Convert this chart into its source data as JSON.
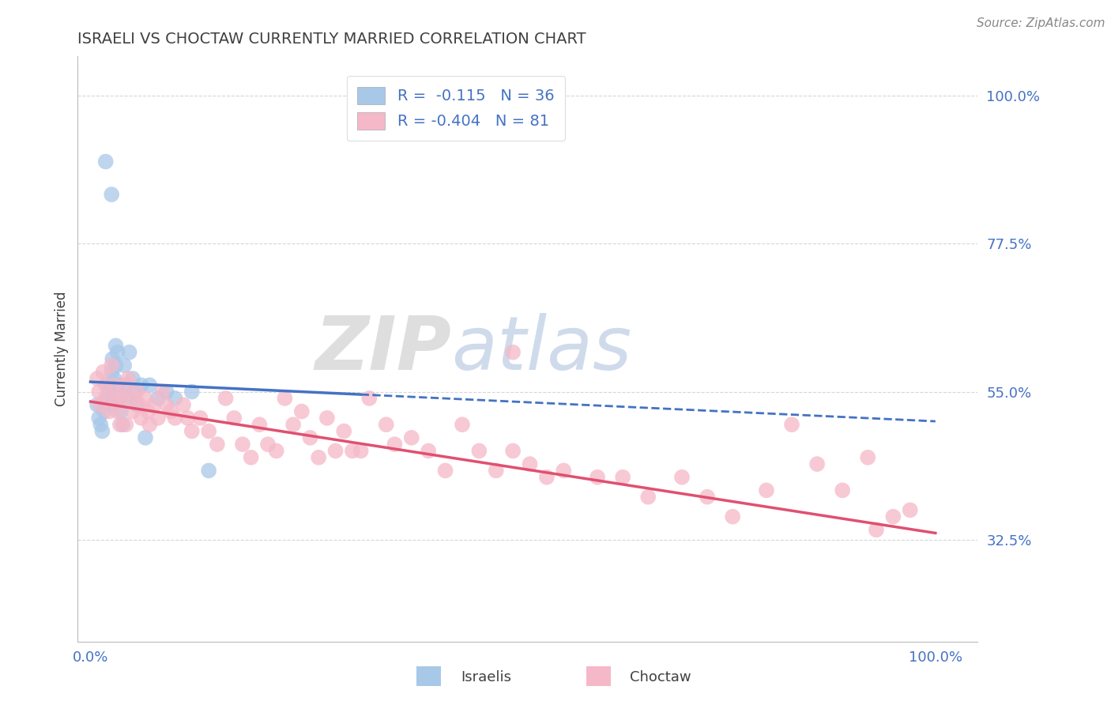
{
  "title": "ISRAELI VS CHOCTAW CURRENTLY MARRIED CORRELATION CHART",
  "source_text": "Source: ZipAtlas.com",
  "ylabel": "Currently Married",
  "watermark": "ZIPatlas",
  "yticks": [
    0.325,
    0.55,
    0.775,
    1.0
  ],
  "ytick_labels": [
    "32.5%",
    "55.0%",
    "77.5%",
    "100.0%"
  ],
  "ymin": 0.17,
  "ymax": 1.06,
  "xmin": -0.015,
  "xmax": 1.05,
  "israeli_color": "#a8c8e8",
  "choctaw_color": "#f5b8c8",
  "israeli_R": -0.115,
  "israeli_N": 36,
  "choctaw_R": -0.404,
  "choctaw_N": 81,
  "trend_israeli_color": "#4472c4",
  "trend_choctaw_color": "#e05070",
  "background_color": "#ffffff",
  "grid_color": "#cccccc",
  "title_color": "#404040",
  "axis_label_color": "#404040",
  "tick_color": "#4472c4",
  "legend_R_color": "#4472c4",
  "israeli_x": [
    0.008,
    0.01,
    0.012,
    0.014,
    0.016,
    0.018,
    0.02,
    0.022,
    0.024,
    0.025,
    0.026,
    0.028,
    0.03,
    0.03,
    0.032,
    0.033,
    0.034,
    0.036,
    0.038,
    0.04,
    0.042,
    0.044,
    0.046,
    0.05,
    0.052,
    0.055,
    0.06,
    0.065,
    0.07,
    0.08,
    0.09,
    0.1,
    0.12,
    0.14,
    0.025,
    0.018
  ],
  "israeli_y": [
    0.53,
    0.51,
    0.5,
    0.49,
    0.52,
    0.54,
    0.56,
    0.55,
    0.53,
    0.58,
    0.6,
    0.57,
    0.62,
    0.59,
    0.61,
    0.56,
    0.54,
    0.52,
    0.5,
    0.59,
    0.56,
    0.54,
    0.61,
    0.57,
    0.55,
    0.53,
    0.56,
    0.48,
    0.56,
    0.54,
    0.55,
    0.54,
    0.55,
    0.43,
    0.85,
    0.9
  ],
  "choctaw_x": [
    0.008,
    0.01,
    0.012,
    0.015,
    0.018,
    0.02,
    0.022,
    0.025,
    0.028,
    0.03,
    0.032,
    0.035,
    0.038,
    0.04,
    0.042,
    0.045,
    0.048,
    0.05,
    0.055,
    0.058,
    0.06,
    0.065,
    0.068,
    0.07,
    0.075,
    0.08,
    0.085,
    0.09,
    0.095,
    0.1,
    0.11,
    0.115,
    0.12,
    0.13,
    0.14,
    0.15,
    0.16,
    0.17,
    0.18,
    0.19,
    0.2,
    0.21,
    0.22,
    0.23,
    0.24,
    0.25,
    0.26,
    0.27,
    0.28,
    0.29,
    0.3,
    0.31,
    0.32,
    0.33,
    0.35,
    0.36,
    0.38,
    0.4,
    0.42,
    0.44,
    0.46,
    0.48,
    0.5,
    0.52,
    0.54,
    0.56,
    0.6,
    0.63,
    0.66,
    0.7,
    0.73,
    0.76,
    0.8,
    0.83,
    0.86,
    0.89,
    0.92,
    0.95,
    0.97,
    0.5,
    0.93
  ],
  "choctaw_y": [
    0.57,
    0.55,
    0.53,
    0.58,
    0.56,
    0.54,
    0.52,
    0.59,
    0.56,
    0.54,
    0.52,
    0.5,
    0.54,
    0.56,
    0.5,
    0.57,
    0.54,
    0.52,
    0.55,
    0.53,
    0.51,
    0.54,
    0.52,
    0.5,
    0.53,
    0.51,
    0.55,
    0.53,
    0.52,
    0.51,
    0.53,
    0.51,
    0.49,
    0.51,
    0.49,
    0.47,
    0.54,
    0.51,
    0.47,
    0.45,
    0.5,
    0.47,
    0.46,
    0.54,
    0.5,
    0.52,
    0.48,
    0.45,
    0.51,
    0.46,
    0.49,
    0.46,
    0.46,
    0.54,
    0.5,
    0.47,
    0.48,
    0.46,
    0.43,
    0.5,
    0.46,
    0.43,
    0.46,
    0.44,
    0.42,
    0.43,
    0.42,
    0.42,
    0.39,
    0.42,
    0.39,
    0.36,
    0.4,
    0.5,
    0.44,
    0.4,
    0.45,
    0.36,
    0.37,
    0.61,
    0.34
  ]
}
